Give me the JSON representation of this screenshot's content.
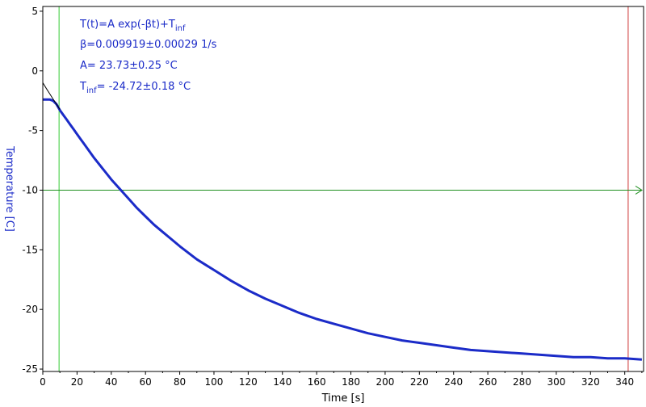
{
  "colors": {
    "data": "#1b2bc8",
    "fit": "#000000",
    "ylabel": "#1b2bc8",
    "annotation": "#1b2bc8",
    "cursor_left": "#33cc33",
    "cursor_right": "#cc3333",
    "hline": "#1f8f1f"
  },
  "chart_data": {
    "type": "line",
    "title": "",
    "xlabel": "Time [s]",
    "ylabel": "Temperature [C]",
    "xlim": [
      0,
      351
    ],
    "ylim": [
      -25.2,
      5.4
    ],
    "grid": false,
    "x_ticks": [
      0,
      20,
      40,
      60,
      80,
      100,
      120,
      140,
      160,
      180,
      200,
      220,
      240,
      260,
      280,
      300,
      320,
      340
    ],
    "x_tick_labels": [
      "0",
      "20",
      "40",
      "60",
      "80",
      "100",
      "120",
      "140",
      "160",
      "180",
      "200",
      "220",
      "240",
      "260",
      "280",
      "300",
      "320",
      "340"
    ],
    "y_ticks": [
      5,
      0,
      -5,
      -10,
      -15,
      -20,
      -25
    ],
    "y_tick_labels": [
      "5",
      "0",
      "-5",
      "-10",
      "-15",
      "-20",
      "-25"
    ],
    "annotations": {
      "formula_main": "T(t)=A exp(-βt)+T",
      "formula_sub": "inf",
      "beta": "β=0.009919±0.00029 1/s",
      "amplitude": "A= 23.73±0.25 °C",
      "tinf_prefix": "T",
      "tinf_sub": "inf",
      "tinf_value": "= -24.72±0.18 °C"
    },
    "cursors": {
      "vertical_left_x": 9.5,
      "vertical_right_x": 342,
      "horizontal_y": -10
    },
    "series": [
      {
        "role": "measured",
        "x": [
          0,
          2,
          4,
          6,
          8,
          10,
          12,
          14,
          16,
          18,
          20,
          22,
          24,
          26,
          28,
          30,
          35,
          40,
          45,
          50,
          55,
          60,
          65,
          70,
          75,
          80,
          90,
          100,
          110,
          120,
          130,
          140,
          150,
          160,
          170,
          180,
          190,
          200,
          210,
          220,
          230,
          240,
          250,
          260,
          270,
          280,
          290,
          300,
          310,
          320,
          330,
          340,
          350
        ],
        "y": [
          -2.4,
          -2.4,
          -2.4,
          -2.5,
          -2.8,
          -3.3,
          -3.7,
          -4.1,
          -4.5,
          -4.9,
          -5.3,
          -5.7,
          -6.1,
          -6.5,
          -6.9,
          -7.3,
          -8.2,
          -9.1,
          -9.9,
          -10.7,
          -11.5,
          -12.2,
          -12.9,
          -13.5,
          -14.1,
          -14.7,
          -15.8,
          -16.7,
          -17.6,
          -18.4,
          -19.1,
          -19.7,
          -20.3,
          -20.8,
          -21.2,
          -21.6,
          -22.0,
          -22.3,
          -22.6,
          -22.8,
          -23.0,
          -23.2,
          -23.4,
          -23.5,
          -23.6,
          -23.7,
          -23.8,
          -23.9,
          -24.0,
          -24.0,
          -24.1,
          -24.1,
          -24.2
        ]
      },
      {
        "role": "fit",
        "x": [
          0,
          2,
          4,
          6,
          8,
          10
        ],
        "y": [
          -0.99,
          -1.46,
          -1.91,
          -2.36,
          -2.8,
          -3.24
        ]
      }
    ]
  }
}
